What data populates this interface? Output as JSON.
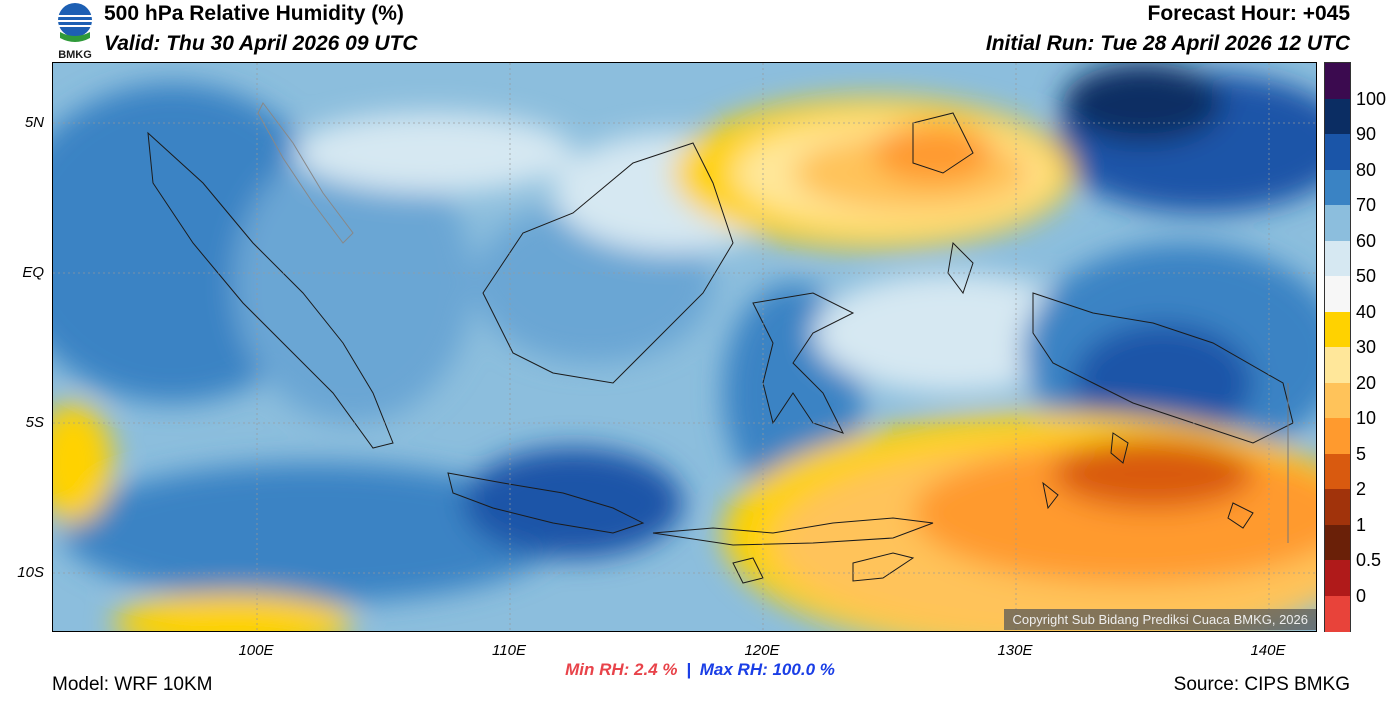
{
  "header": {
    "title": "500 hPa Relative Humidity (%)",
    "valid": "Valid: Thu 30 April 2026 09 UTC",
    "forecast_hour": "Forecast Hour: +045",
    "initial_run": "Initial Run: Tue 28 April 2026 12 UTC",
    "logo_text": "BMKG"
  },
  "map": {
    "lat_labels": [
      "5N",
      "EQ",
      "5S",
      "10S"
    ],
    "lon_labels": [
      "100E",
      "110E",
      "120E",
      "130E",
      "140E"
    ],
    "copyright": "Copyright Sub Bidang Prediksi Cuaca BMKG, 2026"
  },
  "stats": {
    "min_rh": "Min RH:   2.4 %",
    "separator": "|",
    "max_rh": "Max RH: 100.0 %"
  },
  "footer": {
    "model": "Model: WRF 10KM",
    "source": "Source: CIPS BMKG"
  },
  "colorbar": {
    "labels": [
      "100",
      "90",
      "80",
      "70",
      "60",
      "50",
      "40",
      "30",
      "20",
      "10",
      "5",
      "2",
      "1",
      "0.5",
      "0"
    ],
    "colors": [
      "#3b0a4f",
      "#0b2d63",
      "#1a55a8",
      "#3a83c4",
      "#8cbedd",
      "#d6e8f2",
      "#f7f7f7",
      "#ffd200",
      "#ffe79a",
      "#ffc35a",
      "#ff9a2e",
      "#d95a0f",
      "#a1330b",
      "#6a2008",
      "#b01a1a",
      "#e8433a"
    ]
  }
}
